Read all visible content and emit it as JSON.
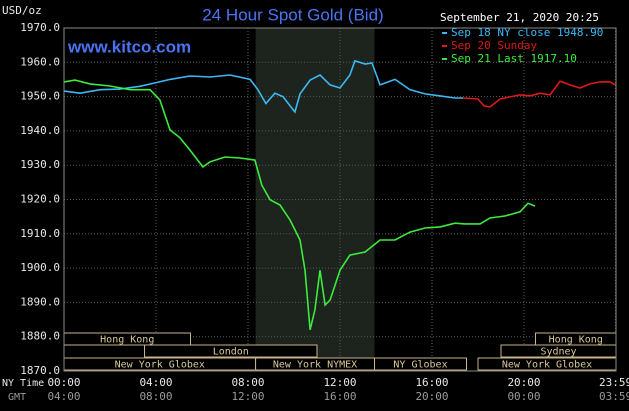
{
  "chart_data": {
    "type": "line",
    "title": "24 Hour Spot Gold (Bid)",
    "site": "www.kitco.com",
    "y_axis_label": "USD/oz",
    "timestamp": "September 21, 2020 20:25",
    "x_axis_label": "NY Time",
    "x2_axis_label": "GMT",
    "xlim": [
      0,
      24
    ],
    "ylim": [
      1870,
      1970
    ],
    "grid": true,
    "xticks": [
      {
        "value": 0,
        "label": "00:00",
        "gmt_label": "04:00"
      },
      {
        "value": 4,
        "label": "04:00",
        "gmt_label": "08:00"
      },
      {
        "value": 8,
        "label": "08:00",
        "gmt_label": "12:00"
      },
      {
        "value": 12,
        "label": "12:00",
        "gmt_label": "16:00"
      },
      {
        "value": 16,
        "label": "16:00",
        "gmt_label": "20:00"
      },
      {
        "value": 20,
        "label": "20:00",
        "gmt_label": "00:00"
      },
      {
        "value": 23.98,
        "label": "23:59",
        "gmt_label": "03:59"
      }
    ],
    "yticks": [
      {
        "value": 1870,
        "label": "1870.0"
      },
      {
        "value": 1880,
        "label": "1880.0"
      },
      {
        "value": 1890,
        "label": "1890.0"
      },
      {
        "value": 1900,
        "label": "1900.0"
      },
      {
        "value": 1910,
        "label": "1910.0"
      },
      {
        "value": 1920,
        "label": "1920.0"
      },
      {
        "value": 1930,
        "label": "1930.0"
      },
      {
        "value": 1940,
        "label": "1940.0"
      },
      {
        "value": 1950,
        "label": "1950.0"
      },
      {
        "value": 1960,
        "label": "1960.0"
      },
      {
        "value": 1970,
        "label": "1970.0"
      }
    ],
    "series": [
      {
        "name": "Sep 18 NY close 1948.90",
        "color": "#3cb8f5",
        "x": [
          0,
          0.7,
          1.57,
          2.43,
          3.3,
          3.96,
          4.61,
          5.48,
          6.35,
          7.22,
          8.09,
          8.43,
          8.78,
          9.17,
          9.52,
          9.83,
          10.04,
          10.26,
          10.7,
          11.13,
          11.57,
          12.0,
          12.43,
          12.65,
          13.09,
          13.39,
          13.74,
          14.39,
          15.04,
          15.7,
          16.35,
          17.0,
          17.35
        ],
        "values": [
          1951.6,
          1951,
          1952,
          1952.2,
          1953,
          1954,
          1955,
          1956,
          1955.7,
          1956.3,
          1955,
          1952,
          1948,
          1951,
          1950,
          1947.3,
          1945.5,
          1950.8,
          1954.8,
          1956.3,
          1953.4,
          1952.5,
          1956.3,
          1960.4,
          1959.5,
          1959.8,
          1953.4,
          1955,
          1952,
          1950.8,
          1950.2,
          1949.6,
          1949.6
        ]
      },
      {
        "name": "Sep 20 Sunday",
        "color": "#e01818",
        "x": [
          17.35,
          18.0,
          18.26,
          18.52,
          18.96,
          19.39,
          19.83,
          20.26,
          20.7,
          21.13,
          21.57,
          22.0,
          22.43,
          22.87,
          23.3,
          23.74,
          23.98
        ],
        "values": [
          1949.6,
          1949.3,
          1947.3,
          1947,
          1949.3,
          1949.9,
          1950.5,
          1950.2,
          1951,
          1950.5,
          1954.5,
          1953.4,
          1952.5,
          1953.7,
          1954.3,
          1954.3,
          1953.4
        ]
      },
      {
        "name": "Sep 21 Last 1917.10",
        "color": "#3cec3c",
        "x": [
          0,
          0.48,
          1.13,
          2.0,
          2.87,
          3.74,
          4.17,
          4.61,
          5.04,
          5.48,
          6.04,
          6.35,
          7.0,
          7.65,
          8.3,
          8.6,
          8.96,
          9.39,
          9.83,
          10.26,
          10.48,
          10.7,
          10.91,
          11.13,
          11.35,
          11.57,
          12.0,
          12.43,
          13.09,
          13.74,
          14.39,
          15.04,
          15.7,
          16.35,
          17.0,
          17.43,
          18.09,
          18.52,
          19.17,
          19.83,
          20.17,
          20.48
        ],
        "values": [
          1954.3,
          1954.8,
          1953.7,
          1953.1,
          1952,
          1952,
          1949,
          1940.3,
          1938,
          1934.4,
          1929.5,
          1931,
          1932.4,
          1932.1,
          1931.5,
          1924.2,
          1919.9,
          1918.4,
          1914,
          1908.2,
          1899.4,
          1882,
          1887.8,
          1899.4,
          1889.2,
          1890.7,
          1899.4,
          1903.8,
          1904.7,
          1908.2,
          1908.2,
          1910.5,
          1911.7,
          1912,
          1913.1,
          1912.9,
          1912.9,
          1914.6,
          1915.2,
          1916.4,
          1918.9,
          1918.1
        ]
      }
    ],
    "sessions": [
      {
        "label": "Hong Kong",
        "row": 0,
        "start": 0,
        "end": 5.5
      },
      {
        "label": "Hong Kong",
        "row": 0,
        "start": 20.5,
        "end": 24
      },
      {
        "label": "London",
        "row": 1,
        "start": 3.5,
        "end": 11.0
      },
      {
        "label": "Sydney",
        "row": 1,
        "start": 19.0,
        "end": 24
      },
      {
        "label": "New York Globex",
        "row": 2,
        "start": 0,
        "end": 8.33
      },
      {
        "label": "New York NYMEX",
        "row": 2,
        "start": 8.33,
        "end": 13.5,
        "shaded": true
      },
      {
        "label": "NY Globex",
        "row": 2,
        "start": 13.5,
        "end": 17.5
      },
      {
        "label": "New York Globex",
        "row": 2,
        "start": 18.0,
        "end": 24
      }
    ]
  }
}
